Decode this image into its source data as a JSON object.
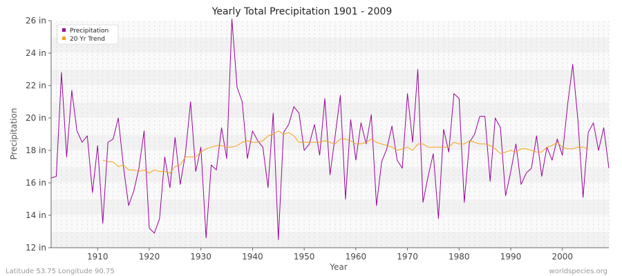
{
  "chart_data": {
    "type": "line",
    "title": "Yearly Total Precipitation 1901 - 2009",
    "xlabel": "Year",
    "ylabel": "Precipitation",
    "xlim": [
      1901,
      2009
    ],
    "ylim": [
      12,
      26
    ],
    "x_ticks": [
      1910,
      1920,
      1930,
      1940,
      1950,
      1960,
      1970,
      1980,
      1990,
      2000
    ],
    "y_ticks": [
      {
        "value": 12,
        "label": "12 in"
      },
      {
        "value": 14,
        "label": "14 in"
      },
      {
        "value": 16,
        "label": "16 in"
      },
      {
        "value": 18,
        "label": "18 in"
      },
      {
        "value": 20,
        "label": "20 in"
      },
      {
        "value": 22,
        "label": "22 in"
      },
      {
        "value": 24,
        "label": "24 in"
      },
      {
        "value": 26,
        "label": "26 in"
      }
    ],
    "grid": true,
    "legend_position": "top-left",
    "series": [
      {
        "name": "Precipitation",
        "color": "#990099",
        "x_start": 1901,
        "values": [
          16.3,
          16.4,
          22.8,
          17.6,
          21.7,
          19.2,
          18.5,
          18.9,
          15.4,
          18.3,
          13.5,
          18.5,
          18.7,
          20.0,
          17.0,
          14.6,
          15.5,
          16.9,
          19.2,
          13.2,
          12.9,
          13.8,
          17.6,
          15.7,
          18.8,
          15.9,
          17.8,
          21.0,
          16.7,
          18.2,
          12.6,
          17.1,
          16.8,
          19.4,
          17.5,
          26.1,
          21.9,
          21.0,
          17.5,
          19.2,
          18.6,
          18.2,
          15.7,
          20.3,
          12.5,
          19.1,
          19.6,
          20.7,
          20.3,
          18.0,
          18.4,
          19.6,
          17.7,
          21.2,
          16.5,
          18.9,
          21.4,
          15.0,
          19.9,
          17.4,
          19.7,
          18.4,
          20.2,
          14.6,
          17.3,
          18.1,
          19.5,
          17.4,
          16.9,
          21.5,
          18.5,
          23.0,
          14.8,
          16.4,
          17.8,
          13.8,
          19.3,
          17.9,
          21.5,
          21.2,
          14.8,
          18.5,
          19.0,
          20.1,
          20.1,
          16.1,
          20.0,
          19.4,
          15.2,
          16.7,
          18.4,
          15.9,
          16.6,
          16.9,
          18.9,
          16.4,
          18.2,
          17.4,
          18.7,
          17.7,
          20.8,
          23.3,
          19.9,
          15.1,
          19.1,
          19.7,
          18.0,
          19.4,
          16.9
        ]
      },
      {
        "name": "20 Yr Trend",
        "color": "#f7a11a",
        "x_start": 1911,
        "values": [
          17.4,
          17.3,
          17.3,
          17.0,
          17.1,
          16.8,
          16.8,
          16.7,
          16.8,
          16.6,
          16.8,
          16.7,
          16.7,
          16.6,
          17.0,
          17.1,
          17.6,
          17.6,
          17.6,
          17.9,
          18.1,
          18.2,
          18.3,
          18.3,
          18.2,
          18.2,
          18.3,
          18.5,
          18.6,
          18.5,
          18.5,
          18.6,
          18.9,
          19.0,
          19.2,
          19.0,
          19.1,
          18.9,
          18.5,
          18.5,
          18.5,
          18.5,
          18.5,
          18.6,
          18.5,
          18.4,
          18.7,
          18.7,
          18.6,
          18.4,
          18.4,
          18.5,
          18.7,
          18.5,
          18.4,
          18.3,
          18.2,
          18.0,
          18.1,
          18.2,
          18.0,
          18.4,
          18.4,
          18.2,
          18.2,
          18.2,
          18.2,
          18.2,
          18.5,
          18.4,
          18.4,
          18.6,
          18.5,
          18.4,
          18.4,
          18.3,
          18.1,
          17.8,
          17.9,
          18.0,
          17.9,
          18.1,
          18.1,
          18.0,
          17.9,
          17.9,
          18.2,
          18.3,
          18.5,
          18.2,
          18.1,
          18.1,
          18.2,
          18.2,
          18.1
        ]
      }
    ]
  },
  "footer": {
    "left": "Latitude 53.75 Longitude 90.75",
    "right": "worldspecies.org"
  }
}
